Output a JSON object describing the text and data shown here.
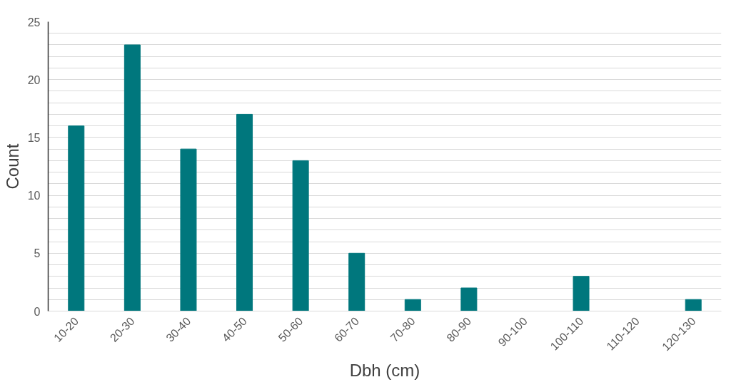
{
  "chart_data": {
    "type": "bar",
    "xlabel": "Dbh (cm)",
    "ylabel": "Count",
    "categories": [
      "10-20",
      "20-30",
      "30-40",
      "40-50",
      "50-60",
      "60-70",
      "70-80",
      "80-90",
      "90-100",
      "100-110",
      "110-120",
      "120-130"
    ],
    "values": [
      16,
      23,
      14,
      17,
      13,
      5,
      1,
      2,
      0,
      3,
      0,
      1
    ],
    "color": "#00777d",
    "ylim": [
      0,
      25
    ],
    "yticks": [
      0,
      {
        "value": 1,
        "label": null
      },
      {
        "value": 2,
        "label": null
      },
      {
        "value": 3,
        "label": null
      },
      {
        "value": 4,
        "label": null
      },
      5,
      {
        "value": 6,
        "label": null
      },
      {
        "value": 7,
        "label": null
      },
      {
        "value": 8,
        "label": null
      },
      {
        "value": 9,
        "label": null
      },
      10,
      {
        "value": 11,
        "label": null
      },
      {
        "value": 12,
        "label": null
      },
      {
        "value": 13,
        "label": null
      },
      {
        "value": 14,
        "label": null
      },
      15,
      {
        "value": 16,
        "label": null
      },
      {
        "value": 17,
        "label": null
      },
      {
        "value": 18,
        "label": null
      },
      {
        "value": 19,
        "label": null
      },
      20,
      {
        "value": 21,
        "label": null
      },
      {
        "value": 22,
        "label": null
      },
      {
        "value": 23,
        "label": null
      },
      {
        "value": 24,
        "label": null
      },
      25
    ],
    "grid": "y"
  }
}
